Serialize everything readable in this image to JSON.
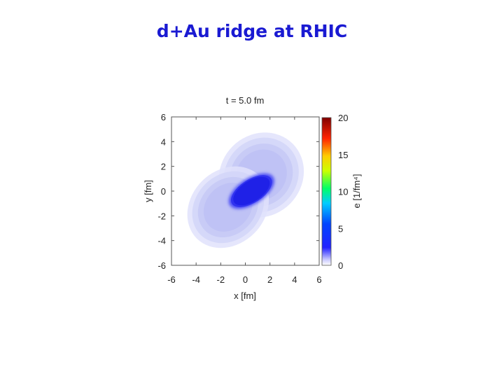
{
  "slide": {
    "title": "d+Au ridge at RHIC"
  },
  "chart_data": {
    "type": "heatmap",
    "title": "t = 5.0 fm",
    "xlabel": "x [fm]",
    "ylabel": "y [fm]",
    "xlim": [
      -6,
      6
    ],
    "ylim": [
      -6,
      6
    ],
    "xticks": [
      "-6",
      "-4",
      "-2",
      "0",
      "2",
      "4",
      "6"
    ],
    "yticks": [
      "-6",
      "-4",
      "-2",
      "0",
      "2",
      "4",
      "6"
    ],
    "colorbar": {
      "label": "e [1/fm⁴]",
      "range": [
        0,
        20
      ],
      "ticks": [
        "0",
        "5",
        "10",
        "15",
        "20"
      ],
      "colors": [
        "#ffffff",
        "#0000ff",
        "#00ffff",
        "#00ff00",
        "#ffff00",
        "#ff0000",
        "#800000"
      ]
    },
    "blobs": [
      {
        "name": "upper-lobe",
        "cx": 1.3,
        "cy": 1.3,
        "rx": 3.6,
        "ry": 3.3,
        "angle": -45,
        "value": 0.6
      },
      {
        "name": "lower-lobe",
        "cx": -1.4,
        "cy": -1.3,
        "rx": 3.6,
        "ry": 3.0,
        "angle": -45,
        "value": 0.5
      },
      {
        "name": "core-ridge",
        "cx": 0.5,
        "cy": 0.0,
        "rx": 2.1,
        "ry": 1.05,
        "angle": -33,
        "value": 3.0
      }
    ]
  }
}
